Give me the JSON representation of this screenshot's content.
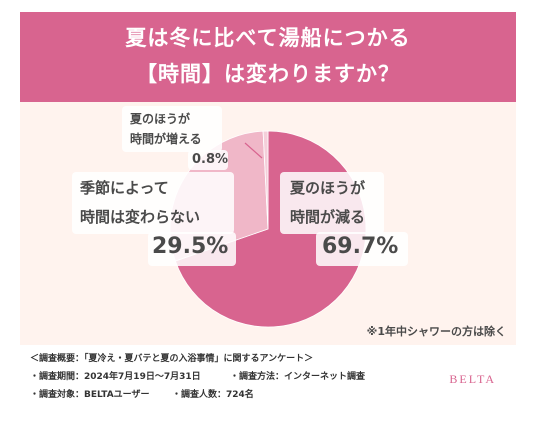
{
  "title_line1": "夏は冬に比べて湯船につかる",
  "title_line2": "【時間】は変わりますか？",
  "chart_data": {
    "type": "pie",
    "categories": [
      "夏のほうが時間が減る",
      "季節によって時間は変わらない",
      "夏のほうが時間が増える"
    ],
    "values": [
      69.7,
      29.5,
      0.8
    ],
    "unit": "%",
    "colors": [
      "#d8648f",
      "#f0b7c8",
      "#f5cfda"
    ],
    "labels": [
      {
        "line1": "夏のほうが",
        "line2": "時間が減る",
        "value": "69.7%"
      },
      {
        "line1": "季節によって",
        "line2": "時間は変わらない",
        "value": "29.5%"
      },
      {
        "line1": "夏のほうが",
        "line2": "時間が増える",
        "value": "0.8%"
      }
    ]
  },
  "note": "※1年中シャワーの方は除く",
  "survey": {
    "line1": "＜調査概要：「夏冷え・夏バテと夏の入浴事情」に関するアンケート＞",
    "line2a": "・調査期間：2024年7月19日〜7月31日",
    "line2b": "・調査方法：インターネット調査",
    "line3a": "・調査対象：BELTAユーザー",
    "line3b": "・調査人数：724名"
  },
  "brand": "BELTA"
}
